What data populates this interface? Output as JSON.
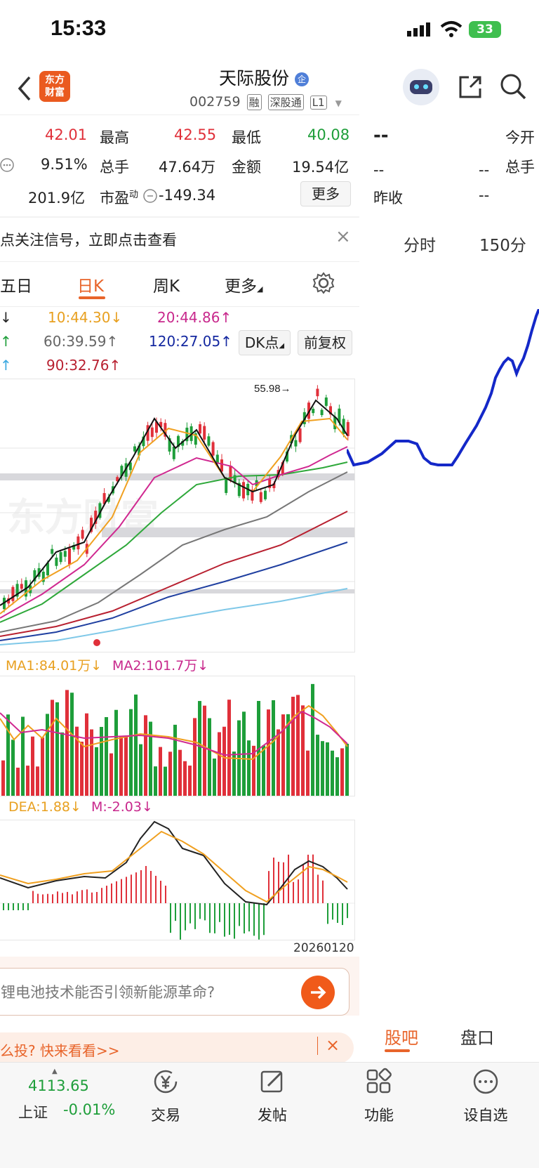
{
  "status_bar": {
    "time": "15:33",
    "battery": "33"
  },
  "header": {
    "logo_line1": "东方",
    "logo_line2": "财富",
    "title": "天际股份",
    "code": "002759",
    "tags": [
      "融",
      "深股通",
      "L1"
    ]
  },
  "quote": {
    "row1": {
      "v1": "42.01",
      "l2": "最高",
      "v2": "42.55",
      "l3": "最低",
      "v3": "40.08"
    },
    "row2": {
      "v1": "9.51%",
      "l2": "总手",
      "v2": "47.64万",
      "l3": "金额",
      "v3": "19.54亿"
    },
    "row3": {
      "v1": "201.9亿",
      "l2": "市盈",
      "l2_sup": "动",
      "v2": "-149.34"
    },
    "more_button": "更多"
  },
  "right_quote": {
    "price": "--",
    "row1_label": "今开",
    "row2_v1": "--",
    "row2_v2": "--",
    "row2_label": "总手",
    "row3_label": "昨收",
    "row3_v": "--"
  },
  "notice": {
    "text": "点关注信号，立即点击查看",
    "close": "×"
  },
  "kline_tabs": {
    "five_day": "五日",
    "day_k": "日K",
    "week_k": "周K",
    "more": "更多",
    "active": "日K"
  },
  "right_tabs": {
    "timeshare": "分时",
    "min150": "150分"
  },
  "ma_values": {
    "ma10": "10:44.30",
    "ma20": "20:44.86",
    "ma60": "60:39.59",
    "ma120": "120:27.05",
    "ma90": "90:32.76",
    "dk_button": "DK点",
    "fq_button": "前复权"
  },
  "kline_chart": {
    "high_marker": "55.98",
    "watermark": "东方财富"
  },
  "volume": {
    "ma1": "MA1:84.01万",
    "ma2": "MA2:101.7万"
  },
  "macd": {
    "dea": "DEA:1.88",
    "m": "M:-2.03",
    "date": "20260120"
  },
  "search_prompt": {
    "text": "锂电池技术能否引领新能源革命?"
  },
  "ad_banner": {
    "text": "么投? 快来看看>>",
    "close": "×"
  },
  "bottom_tabs": {
    "guba": "股吧",
    "pankou": "盘口"
  },
  "bottom_nav": {
    "index_value": "4113.65",
    "index_name": "上证",
    "index_change": "-0.01%",
    "trade": "交易",
    "post": "发帖",
    "functions": "功能",
    "add_watch": "设自选"
  },
  "colors": {
    "up": "#e0303a",
    "down": "#1e9e3a",
    "accent": "#e8642a",
    "line_blue": "#1428c8"
  }
}
